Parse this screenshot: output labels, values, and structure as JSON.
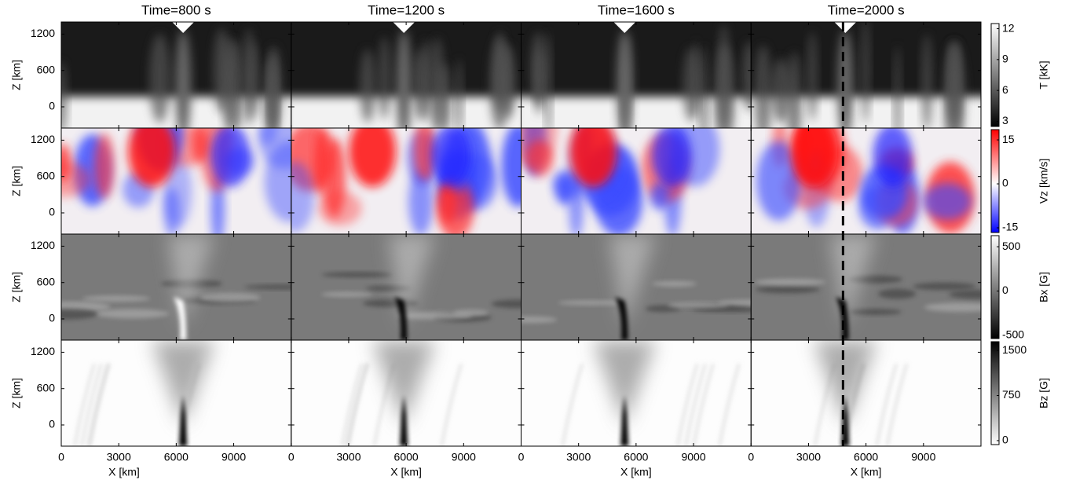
{
  "chart_data": {
    "type": "heatmap-grid",
    "titles": [
      "Time=800 s",
      "Time=1200 s",
      "Time=1600 s",
      "Time=2000 s"
    ],
    "xlabel": "X [km]",
    "ylabel": "Z [km]",
    "xlim": [
      0,
      12000
    ],
    "xticks": [
      0,
      3000,
      6000,
      9000
    ],
    "ylim": [
      -350,
      1400
    ],
    "yticks": [
      0,
      600,
      1200
    ],
    "rows": [
      {
        "colorbar_label": "T [kK]",
        "colormap": "gray",
        "clim": [
          2.5,
          12.5
        ],
        "cticks": [
          3,
          6,
          9,
          12
        ]
      },
      {
        "colorbar_label": "Vz [km/s]",
        "colormap": "bwr",
        "clim": [
          -16.6,
          18.5
        ],
        "cticks": [
          -15,
          0,
          15
        ]
      },
      {
        "colorbar_label": "Bx [G]",
        "colormap": "gray",
        "clim": [
          -536,
          625
        ],
        "cticks": [
          -500,
          0,
          500
        ]
      },
      {
        "colorbar_label": "Bz [G]",
        "colormap": "gray_r",
        "clim": [
          -66,
          1645
        ],
        "cticks": [
          0,
          750,
          1500
        ]
      }
    ],
    "dashed_line_x": 4800
  }
}
